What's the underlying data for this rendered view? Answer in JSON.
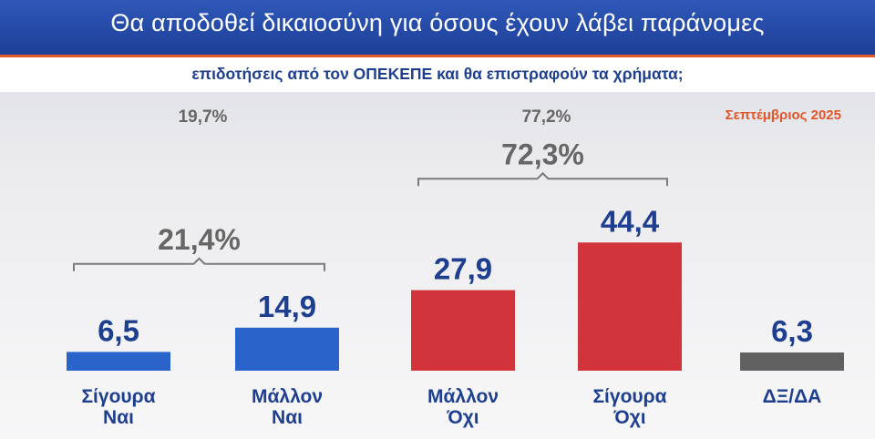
{
  "title": "Θα αποδοθεί δικαιοσύνη για όσους έχουν λάβει παράνομες",
  "subtitle": "επιδοτήσεις από τον ΟΠΕΚΕΠΕ και θα επιστραφούν τα χρήματα;",
  "date": "Σεπτέμβριος 2025",
  "chart_data": {
    "type": "bar",
    "categories": [
      [
        "Σίγουρα",
        "Ναι"
      ],
      [
        "Μάλλον",
        "Ναι"
      ],
      [
        "Μάλλον",
        "Όχι"
      ],
      [
        "Σίγουρα",
        "Όχι"
      ],
      [
        "ΔΞ/ΔΑ"
      ]
    ],
    "values": [
      6.5,
      14.9,
      27.9,
      44.4,
      6.3
    ],
    "value_labels": [
      "6,5",
      "14,9",
      "27,9",
      "44,4",
      "6,3"
    ],
    "colors": [
      "#2a63c9",
      "#2a63c9",
      "#d1343a",
      "#d1343a",
      "#606060"
    ],
    "ylim": [
      0,
      50
    ],
    "grid": false,
    "top_totals": [
      {
        "label": "19,7%",
        "categories": [
          0,
          1
        ]
      },
      {
        "label": "77,2%",
        "categories": [
          2,
          3
        ]
      }
    ],
    "group_brackets": [
      {
        "label": "21,4%",
        "categories": [
          0,
          1
        ]
      },
      {
        "label": "72,3%",
        "categories": [
          2,
          3
        ]
      }
    ]
  }
}
